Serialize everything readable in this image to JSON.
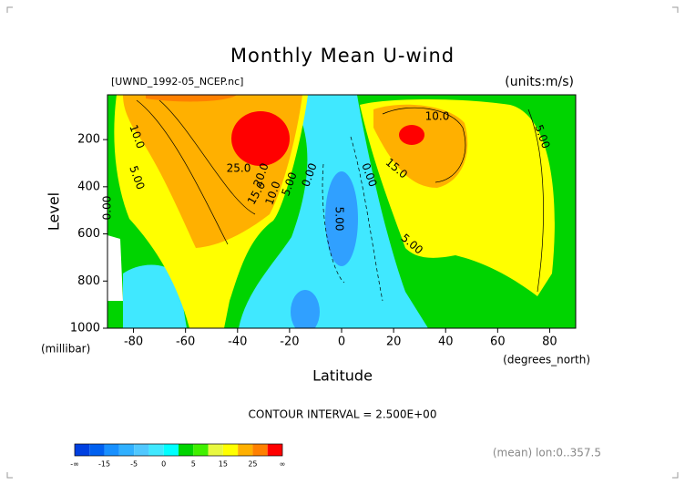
{
  "chart_data": {
    "type": "contour",
    "title": "Monthly Mean U-wind",
    "dataset_label": "[UWND_1992-05_NCEP.nc]",
    "units_label": "(units:m/s)",
    "x_label": "Latitude",
    "x_units": "(degrees_north)",
    "y_label": "Level",
    "y_units": "(millibar)",
    "xlim": [
      -90,
      90
    ],
    "xticks": [
      -80,
      -60,
      -40,
      -20,
      0,
      20,
      40,
      60,
      80
    ],
    "ylim": [
      1000,
      10
    ],
    "yticks": [
      200,
      400,
      600,
      800,
      1000
    ],
    "contour_interval": "CONTOUR INTERVAL = 2.500E+00",
    "contour_labels": [
      "10.0",
      "5.00",
      "0.00",
      "25.0",
      "20.0",
      "15.0",
      "10.0",
      "5.00",
      "0.00",
      "5.00",
      "0.00",
      "10.0",
      "15.0",
      "5.00",
      "5.00"
    ],
    "colorbar": {
      "labels": [
        "-∞",
        -15,
        -5,
        0,
        5,
        15,
        25,
        "∞"
      ],
      "colors": [
        "#0040e0",
        "#0060f0",
        "#1890ff",
        "#30b0ff",
        "#50c8ff",
        "#40e8ff",
        "#00ffff",
        "#00d400",
        "#40f000",
        "#e8f840",
        "#ffff00",
        "#ffb000",
        "#ff8000",
        "#ff0000"
      ]
    },
    "footer": "(mean) lon:0..357.5"
  }
}
